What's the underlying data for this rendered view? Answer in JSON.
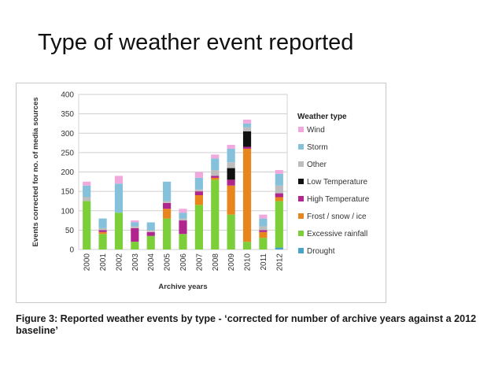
{
  "slide": {
    "title": "Type of weather event reported",
    "caption": "Figure 3:  Reported weather events by type - ‘corrected for number of archive years against a 2012 baseline’"
  },
  "chart_data": {
    "type": "bar",
    "stacked": true,
    "categories": [
      "2000",
      "2001",
      "2002",
      "2003",
      "2004",
      "2005",
      "2006",
      "2007",
      "2008",
      "2009",
      "2010",
      "2011",
      "2012"
    ],
    "xlabel": "Archive years",
    "ylabel": "Events corrected for no. of media sources",
    "ylim": [
      0,
      400
    ],
    "yticks": [
      0,
      50,
      100,
      150,
      200,
      250,
      300,
      350,
      400
    ],
    "grid": true,
    "legend_title": "Weather type",
    "legend_position": "right",
    "series": [
      {
        "name": "Drought",
        "color": "#4aa3c8",
        "values": [
          0,
          0,
          0,
          0,
          0,
          0,
          0,
          0,
          0,
          0,
          0,
          0,
          5
        ]
      },
      {
        "name": "Excessive rainfall",
        "color": "#7dcf3a",
        "values": [
          125,
          40,
          95,
          20,
          35,
          80,
          40,
          115,
          180,
          90,
          20,
          30,
          120
        ]
      },
      {
        "name": "Frost / snow / ice",
        "color": "#e8861e",
        "values": [
          0,
          5,
          0,
          0,
          0,
          25,
          0,
          25,
          5,
          75,
          240,
          15,
          10
        ]
      },
      {
        "name": "High Temperature",
        "color": "#b0268e",
        "values": [
          0,
          5,
          0,
          35,
          10,
          15,
          35,
          10,
          5,
          15,
          5,
          5,
          10
        ]
      },
      {
        "name": "Low Temperature",
        "color": "#111111",
        "values": [
          0,
          0,
          0,
          0,
          0,
          0,
          0,
          0,
          0,
          30,
          40,
          0,
          0
        ]
      },
      {
        "name": "Other",
        "color": "#bdbdbd",
        "values": [
          10,
          5,
          0,
          5,
          5,
          5,
          5,
          5,
          15,
          15,
          10,
          10,
          20
        ]
      },
      {
        "name": "Storm",
        "color": "#86c1dc",
        "values": [
          30,
          25,
          75,
          10,
          20,
          50,
          15,
          30,
          30,
          35,
          10,
          20,
          30
        ]
      },
      {
        "name": "Wind",
        "color": "#f1a9dd",
        "values": [
          10,
          0,
          20,
          5,
          0,
          0,
          10,
          15,
          10,
          10,
          10,
          10,
          10
        ]
      }
    ],
    "legend_order": [
      "Wind",
      "Storm",
      "Other",
      "Low Temperature",
      "High Temperature",
      "Frost / snow / ice",
      "Excessive rainfall",
      "Drought"
    ]
  }
}
